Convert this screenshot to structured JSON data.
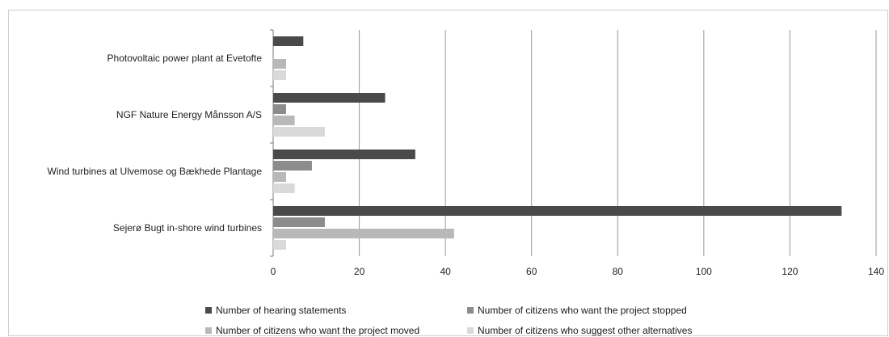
{
  "chart_data": {
    "type": "bar",
    "orientation": "horizontal",
    "categories": [
      "Photovoltaic power plant at Evetofte",
      "NGF Nature Energy Månsson A/S",
      "Wind turbines at Ulvemose og Bækhede Plantage",
      "Sejerø Bugt in-shore wind turbines"
    ],
    "series": [
      {
        "name": "Number of hearing statements",
        "color": "#4a4a4a",
        "values": [
          7,
          26,
          33,
          132
        ]
      },
      {
        "name": "Number of citizens who want the project stopped",
        "color": "#8c8c8c",
        "values": [
          0,
          3,
          9,
          12
        ]
      },
      {
        "name": "Number of citizens who want the project moved",
        "color": "#b8b8b8",
        "values": [
          3,
          5,
          3,
          42
        ]
      },
      {
        "name": "Number of citizens who suggest other alternatives",
        "color": "#d9d9d9",
        "values": [
          3,
          12,
          5,
          3
        ]
      }
    ],
    "xlim": [
      0,
      140
    ],
    "xticks": [
      0,
      20,
      40,
      60,
      80,
      100,
      120,
      140
    ],
    "title": "",
    "xlabel": "",
    "ylabel": "",
    "grid": "vertical",
    "legend": "bottom"
  }
}
